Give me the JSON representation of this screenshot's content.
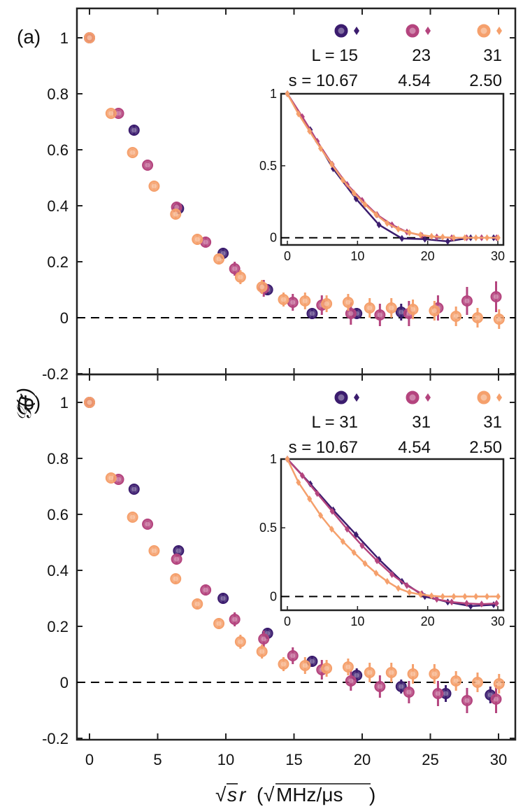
{
  "figure": {
    "ylabel": "𝒢(r)",
    "xlabel_sqrt_s": "s",
    "xlabel_r": "r",
    "xlabel_unit": "MHz/μs",
    "colors": {
      "dark": "#3b1c6e",
      "mid": "#b4447e",
      "light": "#f5a06c",
      "dash": "#000000"
    }
  },
  "chart_data": [
    {
      "panel": "(a)",
      "type": "scatter",
      "xlim": [
        -1,
        31
      ],
      "ylim": [
        -0.2,
        1.1
      ],
      "xticks": [
        0,
        5,
        10,
        15,
        20,
        25,
        30
      ],
      "yticks": [
        "-0.2",
        "0",
        "0.2",
        "0.4",
        "0.6",
        "0.8",
        "1"
      ],
      "xticklabels_visible": false,
      "legend": {
        "L_label": "L = 15",
        "L2": "23",
        "L3": "31",
        "s_label": "s = 10.67",
        "s2": "4.54",
        "s3": "2.50"
      },
      "series": [
        {
          "name": "L=15, s=10.67",
          "color": "dark",
          "points": [
            [
              0,
              1.0
            ],
            [
              3.27,
              0.67
            ],
            [
              6.53,
              0.39
            ],
            [
              9.8,
              0.23
            ],
            [
              13.06,
              0.1
            ],
            [
              16.33,
              0.015
            ],
            [
              19.6,
              0.015
            ],
            [
              22.86,
              0.02
            ]
          ],
          "err": [
            0,
            0.015,
            0.015,
            0.02,
            0.02,
            0.02,
            0.02,
            0.03
          ]
        },
        {
          "name": "L=23, s=4.54",
          "color": "mid",
          "points": [
            [
              0,
              1.0
            ],
            [
              2.13,
              0.73
            ],
            [
              4.26,
              0.545
            ],
            [
              6.39,
              0.395
            ],
            [
              8.52,
              0.27
            ],
            [
              10.65,
              0.175
            ],
            [
              12.78,
              0.105
            ],
            [
              14.91,
              0.055
            ],
            [
              17.04,
              0.045
            ],
            [
              19.17,
              0.015
            ],
            [
              21.3,
              0.01
            ],
            [
              23.43,
              0.015
            ],
            [
              25.56,
              0.035
            ],
            [
              27.69,
              0.06
            ],
            [
              29.82,
              0.075
            ]
          ],
          "err": [
            0,
            0.012,
            0.012,
            0.015,
            0.02,
            0.025,
            0.03,
            0.03,
            0.035,
            0.04,
            0.04,
            0.045,
            0.045,
            0.05,
            0.055
          ]
        },
        {
          "name": "L=31, s=2.50",
          "color": "light",
          "points": [
            [
              0,
              1.0
            ],
            [
              1.58,
              0.73
            ],
            [
              3.16,
              0.59
            ],
            [
              4.74,
              0.47
            ],
            [
              6.32,
              0.37
            ],
            [
              7.91,
              0.28
            ],
            [
              9.49,
              0.21
            ],
            [
              11.07,
              0.145
            ],
            [
              12.65,
              0.11
            ],
            [
              14.23,
              0.065
            ],
            [
              15.81,
              0.06
            ],
            [
              17.39,
              0.05
            ],
            [
              18.97,
              0.055
            ],
            [
              20.55,
              0.035
            ],
            [
              22.14,
              0.035
            ],
            [
              23.72,
              0.03
            ],
            [
              25.3,
              0.025
            ],
            [
              26.88,
              0.005
            ],
            [
              28.46,
              0.0
            ],
            [
              30.04,
              -0.005
            ]
          ],
          "err": [
            0,
            0.012,
            0.012,
            0.012,
            0.015,
            0.02,
            0.02,
            0.025,
            0.025,
            0.025,
            0.03,
            0.03,
            0.03,
            0.035,
            0.035,
            0.035,
            0.035,
            0.035,
            0.035,
            0.035
          ]
        }
      ],
      "inset": {
        "xlim": [
          -1,
          31
        ],
        "ylim": [
          -0.05,
          1.0
        ],
        "xticks": [
          0,
          10,
          20,
          30
        ],
        "yticks": [
          "0",
          "0.5",
          "1"
        ],
        "series": [
          {
            "color": "dark",
            "points": [
              [
                0,
                1.0
              ],
              [
                3.27,
                0.75
              ],
              [
                6.53,
                0.48
              ],
              [
                9.8,
                0.27
              ],
              [
                13.06,
                0.09
              ],
              [
                16.33,
                -0.005
              ],
              [
                19.6,
                -0.01
              ],
              [
                22.86,
                -0.025
              ],
              [
                26.13,
                0.0
              ],
              [
                29.4,
                0.0
              ]
            ]
          },
          {
            "color": "mid",
            "points": [
              [
                0,
                1.0
              ],
              [
                2.13,
                0.84
              ],
              [
                4.26,
                0.67
              ],
              [
                6.39,
                0.51
              ],
              [
                8.52,
                0.37
              ],
              [
                10.65,
                0.26
              ],
              [
                12.78,
                0.16
              ],
              [
                14.91,
                0.09
              ],
              [
                17.04,
                0.04
              ],
              [
                19.17,
                0.015
              ],
              [
                21.3,
                0.005
              ],
              [
                23.43,
                0.0
              ],
              [
                25.56,
                0.0
              ],
              [
                27.69,
                0.0
              ],
              [
                29.82,
                0.0
              ]
            ]
          },
          {
            "color": "light",
            "points": [
              [
                0,
                1.0
              ],
              [
                1.58,
                0.86
              ],
              [
                3.16,
                0.74
              ],
              [
                4.74,
                0.62
              ],
              [
                6.32,
                0.51
              ],
              [
                7.91,
                0.4
              ],
              [
                9.49,
                0.31
              ],
              [
                11.07,
                0.23
              ],
              [
                12.65,
                0.16
              ],
              [
                14.23,
                0.1
              ],
              [
                15.81,
                0.06
              ],
              [
                17.39,
                0.035
              ],
              [
                18.97,
                0.02
              ],
              [
                20.55,
                0.01
              ],
              [
                22.14,
                0.005
              ],
              [
                23.72,
                0.0
              ],
              [
                25.3,
                0.0
              ],
              [
                26.88,
                0.0
              ],
              [
                28.46,
                0.0
              ],
              [
                30.04,
                0.0
              ]
            ]
          }
        ]
      }
    },
    {
      "panel": "(b)",
      "type": "scatter",
      "xlim": [
        -1,
        31
      ],
      "ylim": [
        -0.2,
        1.1
      ],
      "xticks": [
        0,
        5,
        10,
        15,
        20,
        25,
        30
      ],
      "yticks": [
        "-0.2",
        "0",
        "0.2",
        "0.4",
        "0.6",
        "0.8",
        "1"
      ],
      "xticklabels_visible": true,
      "legend": {
        "L_label": "L = 31",
        "L2": "31",
        "L3": "31",
        "s_label": "s = 10.67",
        "s2": "4.54",
        "s3": "2.50"
      },
      "series": [
        {
          "name": "L=31, s=10.67",
          "color": "dark",
          "points": [
            [
              0,
              1.0
            ],
            [
              3.27,
              0.69
            ],
            [
              6.53,
              0.47
            ],
            [
              9.8,
              0.3
            ],
            [
              13.06,
              0.175
            ],
            [
              16.33,
              0.075
            ],
            [
              19.6,
              0.025
            ],
            [
              22.86,
              -0.015
            ],
            [
              26.13,
              -0.04
            ],
            [
              29.4,
              -0.045
            ]
          ],
          "err": [
            0,
            0.012,
            0.015,
            0.015,
            0.02,
            0.02,
            0.025,
            0.025,
            0.03,
            0.03
          ]
        },
        {
          "name": "L=31, s=4.54",
          "color": "mid",
          "points": [
            [
              0,
              1.0
            ],
            [
              2.13,
              0.725
            ],
            [
              4.26,
              0.565
            ],
            [
              6.39,
              0.44
            ],
            [
              8.52,
              0.33
            ],
            [
              10.65,
              0.225
            ],
            [
              12.78,
              0.155
            ],
            [
              14.91,
              0.095
            ],
            [
              17.04,
              0.045
            ],
            [
              19.17,
              0.005
            ],
            [
              21.3,
              -0.015
            ],
            [
              23.43,
              -0.035
            ],
            [
              25.56,
              -0.04
            ],
            [
              27.69,
              -0.065
            ],
            [
              29.82,
              -0.06
            ]
          ],
          "err": [
            0,
            0.012,
            0.012,
            0.015,
            0.02,
            0.025,
            0.03,
            0.03,
            0.035,
            0.035,
            0.04,
            0.04,
            0.045,
            0.045,
            0.05
          ]
        },
        {
          "name": "L=31, s=2.50",
          "color": "light",
          "points": [
            [
              0,
              1.0
            ],
            [
              1.58,
              0.73
            ],
            [
              3.16,
              0.59
            ],
            [
              4.74,
              0.47
            ],
            [
              6.32,
              0.37
            ],
            [
              7.91,
              0.28
            ],
            [
              9.49,
              0.21
            ],
            [
              11.07,
              0.145
            ],
            [
              12.65,
              0.11
            ],
            [
              14.23,
              0.065
            ],
            [
              15.81,
              0.06
            ],
            [
              17.39,
              0.05
            ],
            [
              18.97,
              0.055
            ],
            [
              20.55,
              0.035
            ],
            [
              22.14,
              0.035
            ],
            [
              23.72,
              0.03
            ],
            [
              25.3,
              0.03
            ],
            [
              26.88,
              0.005
            ],
            [
              28.46,
              0.0
            ],
            [
              30.04,
              -0.005
            ]
          ],
          "err": [
            0,
            0.012,
            0.012,
            0.012,
            0.015,
            0.02,
            0.02,
            0.025,
            0.025,
            0.025,
            0.03,
            0.03,
            0.03,
            0.035,
            0.035,
            0.035,
            0.035,
            0.035,
            0.035,
            0.035
          ]
        }
      ],
      "inset": {
        "xlim": [
          -1,
          31
        ],
        "ylim": [
          -0.1,
          1.0
        ],
        "xticks": [
          0,
          10,
          20,
          30
        ],
        "yticks": [
          "0",
          "0.5",
          "1"
        ],
        "series": [
          {
            "color": "dark",
            "points": [
              [
                0,
                1.0
              ],
              [
                3.27,
                0.82
              ],
              [
                6.53,
                0.63
              ],
              [
                9.8,
                0.45
              ],
              [
                13.06,
                0.27
              ],
              [
                16.33,
                0.11
              ],
              [
                19.6,
                0.0
              ],
              [
                22.86,
                -0.04
              ],
              [
                26.13,
                -0.07
              ],
              [
                29.4,
                -0.06
              ]
            ]
          },
          {
            "color": "mid",
            "points": [
              [
                0,
                1.0
              ],
              [
                2.13,
                0.88
              ],
              [
                4.26,
                0.75
              ],
              [
                6.39,
                0.62
              ],
              [
                8.52,
                0.49
              ],
              [
                10.65,
                0.37
              ],
              [
                12.78,
                0.26
              ],
              [
                14.91,
                0.16
              ],
              [
                17.04,
                0.08
              ],
              [
                19.17,
                0.02
              ],
              [
                21.3,
                -0.02
              ],
              [
                23.43,
                -0.04
              ],
              [
                25.56,
                -0.05
              ],
              [
                27.69,
                -0.055
              ],
              [
                29.82,
                -0.05
              ]
            ]
          },
          {
            "color": "light",
            "points": [
              [
                0,
                1.0
              ],
              [
                1.58,
                0.83
              ],
              [
                3.16,
                0.71
              ],
              [
                4.74,
                0.59
              ],
              [
                6.32,
                0.49
              ],
              [
                7.91,
                0.4
              ],
              [
                9.49,
                0.32
              ],
              [
                11.07,
                0.24
              ],
              [
                12.65,
                0.17
              ],
              [
                14.23,
                0.11
              ],
              [
                15.81,
                0.06
              ],
              [
                17.39,
                0.03
              ],
              [
                18.97,
                0.015
              ],
              [
                20.55,
                0.005
              ],
              [
                22.14,
                0.0
              ],
              [
                23.72,
                0.0
              ],
              [
                25.3,
                0.0
              ],
              [
                26.88,
                0.0
              ],
              [
                28.46,
                0.0
              ],
              [
                30.04,
                0.0
              ]
            ]
          }
        ]
      }
    }
  ]
}
